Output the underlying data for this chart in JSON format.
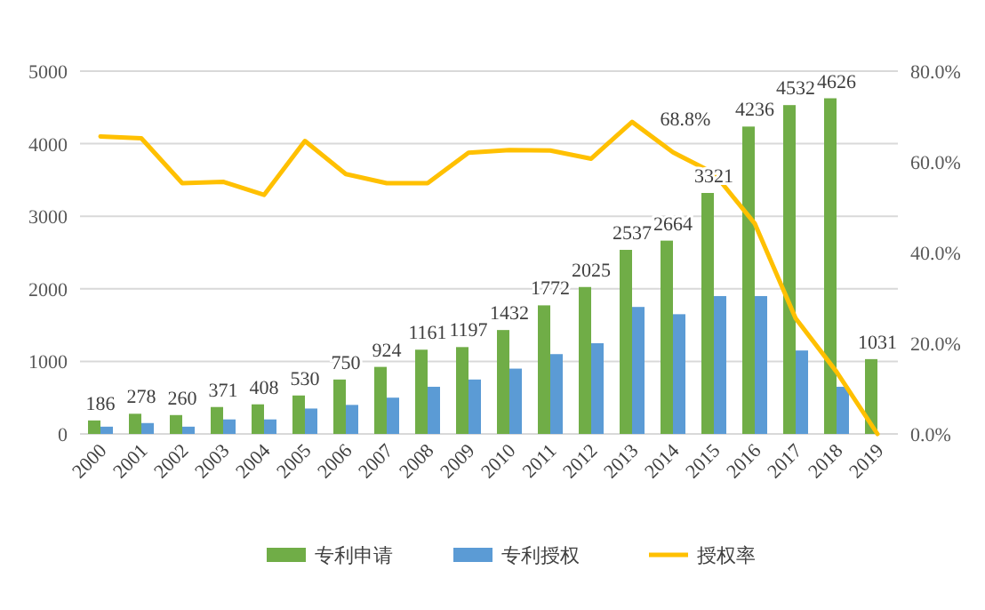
{
  "chart_data": {
    "type": "bar",
    "categories": [
      "2000",
      "2001",
      "2002",
      "2003",
      "2004",
      "2005",
      "2006",
      "2007",
      "2008",
      "2009",
      "2010",
      "2011",
      "2012",
      "2013",
      "2014",
      "2015",
      "2016",
      "2017",
      "2018",
      "2019"
    ],
    "series": [
      {
        "name": "专利申请",
        "color": "#70ad47",
        "values": [
          186,
          278,
          260,
          371,
          408,
          530,
          750,
          924,
          1161,
          1197,
          1432,
          1772,
          2025,
          2537,
          2664,
          3321,
          4236,
          4532,
          4626,
          1031
        ],
        "value_labels": [
          "186",
          "278",
          "260",
          "371",
          "408",
          "530",
          "750",
          "924",
          "1161",
          "1197",
          "1432",
          "1772",
          "2025",
          "2537",
          "2664",
          "3321",
          "4236",
          "4532",
          "4626",
          "1031"
        ]
      },
      {
        "name": "专利授权",
        "color": "#5b9bd5",
        "values": [
          100,
          150,
          100,
          200,
          200,
          350,
          400,
          500,
          650,
          750,
          900,
          1100,
          1250,
          1750,
          1650,
          1900,
          1900,
          1150,
          650,
          null
        ]
      },
      {
        "name": "授权率",
        "type": "line",
        "axis": "y2",
        "color": "#ffc000",
        "values": [
          65.6,
          65.2,
          55.3,
          55.6,
          52.7,
          64.6,
          57.3,
          55.3,
          55.3,
          62.0,
          62.6,
          62.5,
          60.7,
          68.8,
          62.1,
          57.5,
          46.4,
          25.5,
          13.7,
          0
        ],
        "value_labels": [
          null,
          null,
          null,
          null,
          null,
          null,
          null,
          null,
          null,
          null,
          null,
          null,
          null,
          "68.8%",
          null,
          null,
          null,
          null,
          null,
          null
        ]
      }
    ],
    "ylim": [
      0,
      5000
    ],
    "yticks": [
      0,
      1000,
      2000,
      3000,
      4000,
      5000
    ],
    "y2lim": [
      0,
      80
    ],
    "y2ticks": [
      {
        "value": 0,
        "label": "0.0%"
      },
      {
        "value": 20,
        "label": "20.0%"
      },
      {
        "value": 40,
        "label": "40.0%"
      },
      {
        "value": 60,
        "label": "60.0%"
      },
      {
        "value": 80,
        "label": "80.0%"
      }
    ],
    "grid": "y",
    "legend": "bottom",
    "marker": "none",
    "line_style": "solid"
  }
}
